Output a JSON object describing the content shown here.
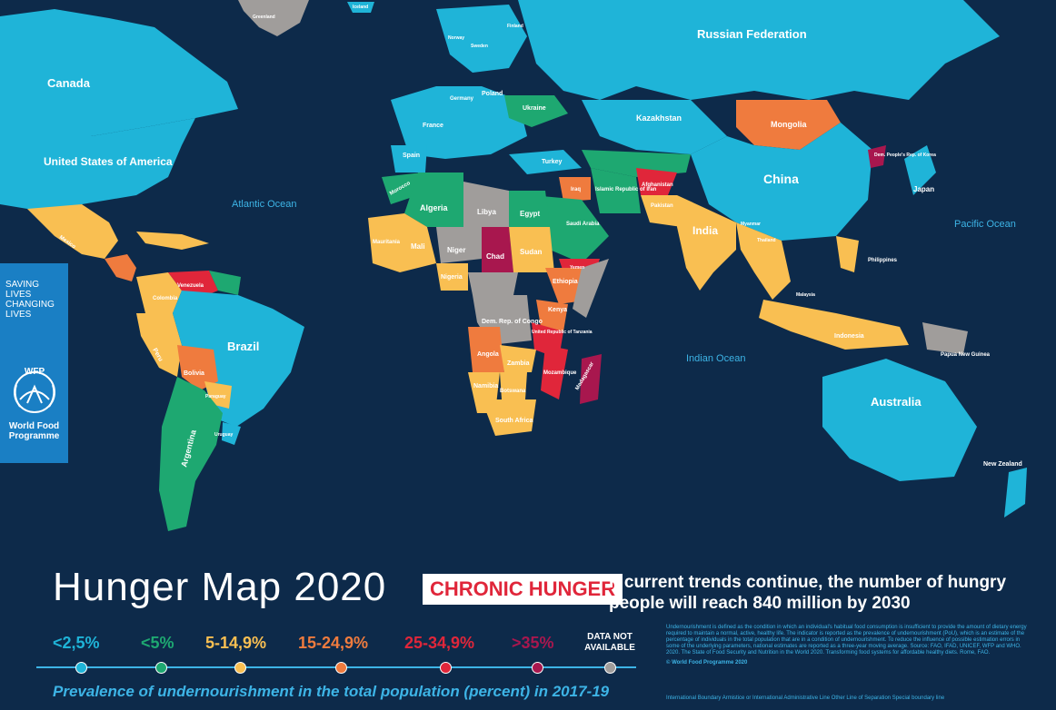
{
  "title": "Hunger Map 2020",
  "badge": "CHRONIC HUNGER",
  "trend_statement": "If current trends continue, the number of hungry people will reach 840 million by 2030",
  "subtitle": "Prevalence of undernourishment in the total population (percent) in 2017-19",
  "wfp": {
    "slogan_lines": [
      "SAVING",
      "LIVES",
      "CHANGING",
      "LIVES"
    ],
    "logo_text": "WFP",
    "org_name_lines": [
      "World Food",
      "Programme"
    ]
  },
  "legend": [
    {
      "label": "<2,5%",
      "color": "#1fb4d8"
    },
    {
      "label": "<5%",
      "color": "#1ea871"
    },
    {
      "label": "5-14,9%",
      "color": "#f9bf52"
    },
    {
      "label": "15-24,9%",
      "color": "#ef7b3e"
    },
    {
      "label": "25-34,9%",
      "color": "#e0263a"
    },
    {
      "label": ">35%",
      "color": "#a8174e"
    },
    {
      "label": "DATA NOT AVAILABLE",
      "color": "#a09d9b"
    }
  ],
  "oceans": {
    "atlantic": "Atlantic Ocean",
    "pacific": "Pacific Ocean",
    "indian": "Indian Ocean"
  },
  "countries": {
    "russia": "Russian Federation",
    "canada": "Canada",
    "usa": "United States of America",
    "brazil": "Brazil",
    "china": "China",
    "australia": "Australia",
    "india": "India",
    "kazakhstan": "Kazakhstan",
    "mongolia": "Mongolia",
    "algeria": "Algeria",
    "libya": "Libya",
    "egypt": "Egypt",
    "niger": "Niger",
    "chad": "Chad",
    "mali": "Mali",
    "sudan": "Sudan",
    "nigeria": "Nigeria",
    "ethiopia": "Ethiopia",
    "kenya": "Kenya",
    "drc": "Dem. Rep. of Congo",
    "angola": "Angola",
    "zambia": "Zambia",
    "namibia": "Namibia",
    "botswana": "Botswana",
    "south_africa": "South Africa",
    "madagascar": "Madagascar",
    "tanzania": "United Republic of Tanzania",
    "mozambique": "Mozambique",
    "saudi": "Saudi Arabia",
    "iran": "Islamic Republic of Iran",
    "iraq": "Iraq",
    "afghanistan": "Afghanistan",
    "pakistan": "Pakistan",
    "turkey": "Turkey",
    "ukraine": "Ukraine",
    "poland": "Poland",
    "germany": "Germany",
    "france": "France",
    "spain": "Spain",
    "norway": "Norway",
    "sweden": "Sweden",
    "finland": "Finland",
    "greenland": "Greenland",
    "iceland": "Iceland",
    "japan": "Japan",
    "dprk": "Dem. People's Rep. of Korea",
    "indonesia": "Indonesia",
    "philippines": "Philippines",
    "png": "Papua New Guinea",
    "new_zealand": "New Zealand",
    "argentina": "Argentina",
    "bolivia": "Bolivia",
    "peru": "Peru",
    "colombia": "Colombia",
    "venezuela": "Venezuela",
    "mexico": "Mexico",
    "paraguay": "Paraguay",
    "uruguay": "Uruguay",
    "morocco": "Morocco",
    "mauritania": "Mauritania",
    "yemen": "Yemen",
    "malaysia": "Malaysia",
    "myanmar": "Myanmar",
    "thailand": "Thailand"
  },
  "notes_text": "Undernourishment is defined as the condition in which an individual's habitual food consumption is insufficient to provide the amount of dietary energy required to maintain a normal, active, healthy life. The indicator is reported as the prevalence of undernourishment (PoU), which is an estimate of the percentage of individuals in the total population that are in a condition of undernourishment. To reduce the influence of possible estimation errors in some of the underlying parameters, national estimates are reported as a three-year moving average. Source: FAO, IFAD, UNICEF, WFP and WHO. 2020. The State of Food Security and Nutrition in the World 2020. Transforming food systems for affordable healthy diets. Rome, FAO.",
  "copyright": "© World Food Programme 2020",
  "boundaries": "International Boundary   Armistice or International Administrative Line   Other Line of Separation   Special boundary line"
}
